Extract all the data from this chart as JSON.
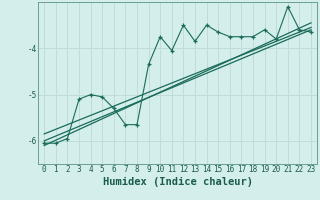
{
  "xlabel": "Humidex (Indice chaleur)",
  "bg_color": "#d4eeec",
  "grid_color": "#c0dbd8",
  "line_color": "#1a6b5a",
  "xlim": [
    -0.5,
    23.5
  ],
  "ylim": [
    -6.5,
    -3.0
  ],
  "yticks": [
    -6,
    -5,
    -4
  ],
  "xticks": [
    0,
    1,
    2,
    3,
    4,
    5,
    6,
    7,
    8,
    9,
    10,
    11,
    12,
    13,
    14,
    15,
    16,
    17,
    18,
    19,
    20,
    21,
    22,
    23
  ],
  "jagged_x": [
    0,
    1,
    2,
    3,
    4,
    5,
    6,
    7,
    8,
    9,
    10,
    11,
    12,
    13,
    14,
    15,
    16,
    17,
    18,
    19,
    20,
    21,
    22,
    23
  ],
  "jagged_y": [
    -6.05,
    -6.05,
    -5.95,
    -5.1,
    -5.0,
    -5.05,
    -5.3,
    -5.65,
    -5.65,
    -4.35,
    -3.75,
    -4.05,
    -3.5,
    -3.85,
    -3.5,
    -3.65,
    -3.75,
    -3.75,
    -3.75,
    -3.6,
    -3.8,
    -3.1,
    -3.6,
    -3.65
  ],
  "line1_x": [
    0,
    23
  ],
  "line1_y": [
    -6.1,
    -3.45
  ],
  "line2_x": [
    0,
    23
  ],
  "line2_y": [
    -6.0,
    -3.6
  ],
  "line3_x": [
    0,
    23
  ],
  "line3_y": [
    -5.85,
    -3.55
  ],
  "tick_fontsize": 5.5,
  "xlabel_fontsize": 7.5
}
